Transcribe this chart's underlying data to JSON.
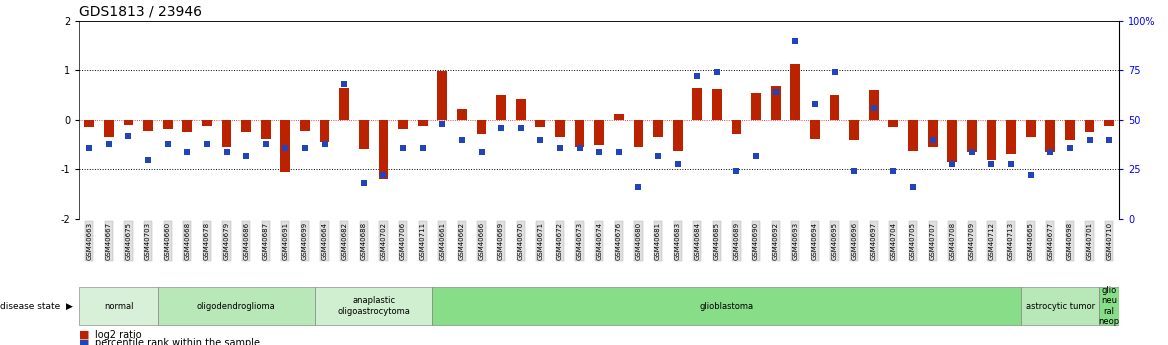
{
  "title": "GDS1813 / 23946",
  "samples": [
    "GSM40663",
    "GSM40667",
    "GSM40675",
    "GSM40703",
    "GSM40660",
    "GSM40668",
    "GSM40678",
    "GSM40679",
    "GSM40686",
    "GSM40687",
    "GSM40691",
    "GSM40699",
    "GSM40664",
    "GSM40682",
    "GSM40688",
    "GSM40702",
    "GSM40706",
    "GSM40711",
    "GSM40661",
    "GSM40662",
    "GSM40666",
    "GSM40669",
    "GSM40670",
    "GSM40671",
    "GSM40672",
    "GSM40673",
    "GSM40674",
    "GSM40676",
    "GSM40680",
    "GSM40681",
    "GSM40683",
    "GSM40684",
    "GSM40685",
    "GSM40689",
    "GSM40690",
    "GSM40692",
    "GSM40693",
    "GSM40694",
    "GSM40695",
    "GSM40696",
    "GSM40697",
    "GSM40704",
    "GSM40705",
    "GSM40707",
    "GSM40708",
    "GSM40709",
    "GSM40712",
    "GSM40713",
    "GSM40665",
    "GSM40677",
    "GSM40698",
    "GSM40701",
    "GSM40710"
  ],
  "log2_ratio": [
    -0.15,
    -0.35,
    -0.1,
    -0.22,
    -0.18,
    -0.25,
    -0.12,
    -0.55,
    -0.25,
    -0.38,
    -1.05,
    -0.22,
    -0.45,
    0.65,
    -0.58,
    -1.2,
    -0.18,
    -0.12,
    0.98,
    0.22,
    -0.28,
    0.5,
    0.42,
    -0.15,
    -0.35,
    -0.55,
    -0.5,
    0.12,
    -0.55,
    -0.35,
    -0.62,
    0.65,
    0.62,
    -0.28,
    0.55,
    0.68,
    1.12,
    -0.38,
    0.5,
    -0.4,
    0.6,
    -0.15,
    -0.62,
    -0.55,
    -0.85,
    -0.65,
    -0.8,
    -0.68,
    -0.35,
    -0.65,
    -0.4,
    -0.25,
    -0.12
  ],
  "percentile_rank": [
    36,
    38,
    42,
    30,
    38,
    34,
    38,
    34,
    32,
    38,
    36,
    36,
    38,
    68,
    18,
    22,
    36,
    36,
    48,
    40,
    34,
    46,
    46,
    40,
    36,
    36,
    34,
    34,
    16,
    32,
    28,
    72,
    74,
    24,
    32,
    64,
    90,
    58,
    74,
    24,
    56,
    24,
    16,
    40,
    28,
    34,
    28,
    28,
    22,
    34,
    36,
    40,
    40
  ],
  "disease_groups": [
    {
      "label": "normal",
      "start": 0,
      "end": 3,
      "color": "#d8f0d8"
    },
    {
      "label": "oligodendroglioma",
      "start": 4,
      "end": 11,
      "color": "#b8e8b8"
    },
    {
      "label": "anaplastic\noligoastrocytoma",
      "start": 12,
      "end": 17,
      "color": "#d0eed0"
    },
    {
      "label": "glioblastoma",
      "start": 18,
      "end": 47,
      "color": "#88dd88"
    },
    {
      "label": "astrocytic tumor",
      "start": 48,
      "end": 51,
      "color": "#b8e8b8"
    },
    {
      "label": "glio\nneu\nral\nneop",
      "start": 52,
      "end": 52,
      "color": "#88dd88"
    }
  ],
  "bar_color": "#bb2200",
  "dot_color": "#2244bb",
  "ylim_left": [
    -2.0,
    2.0
  ],
  "ylim_right": [
    0,
    100
  ],
  "yticks_left": [
    -2,
    -1,
    0,
    1,
    2
  ],
  "yticks_right": [
    0,
    25,
    50,
    75,
    100
  ],
  "hlines_dotted": [
    -1.0,
    1.0
  ],
  "hline_zero": 0.0,
  "title_fontsize": 10,
  "bar_width": 0.5
}
